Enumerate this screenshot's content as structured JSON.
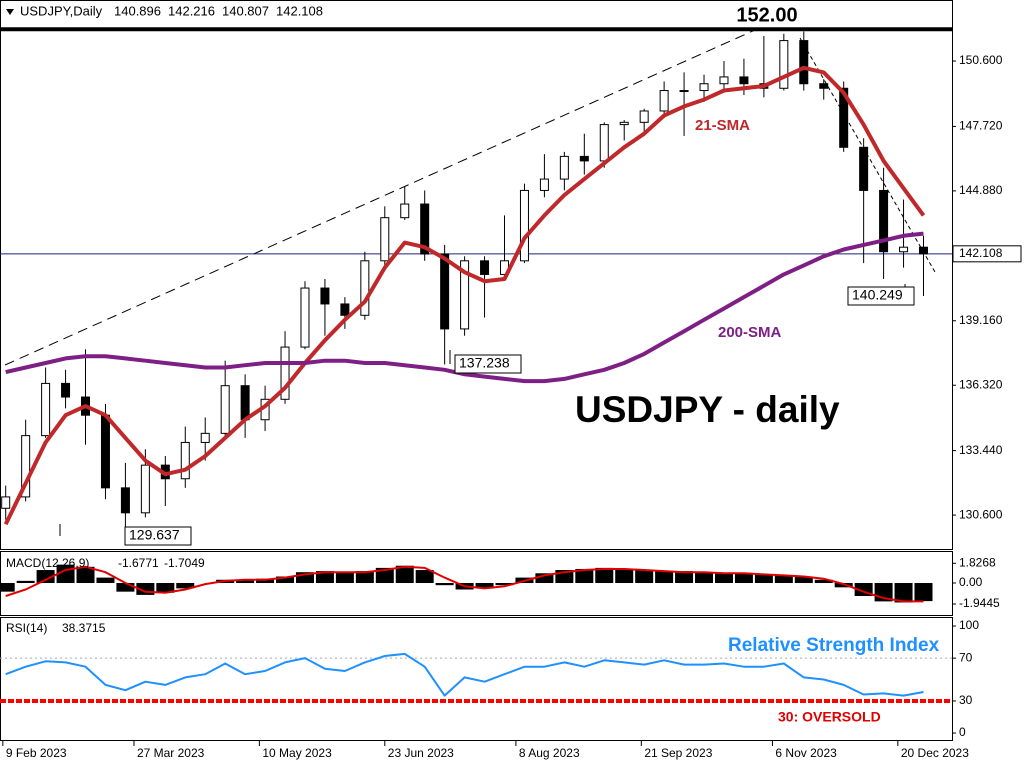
{
  "chart_data": [
    {
      "type": "candlestick",
      "header": "USDJPY,Daily",
      "ohlc_readout": [
        140.896,
        142.216,
        140.807,
        142.108
      ],
      "title": "USDJPY - daily",
      "x": [
        "2023-02-10",
        "2023-02-17",
        "2023-02-24",
        "2023-03-03",
        "2023-03-10",
        "2023-03-17",
        "2023-03-24",
        "2023-03-31",
        "2023-04-07",
        "2023-04-14",
        "2023-04-21",
        "2023-04-28",
        "2023-05-05",
        "2023-05-12",
        "2023-05-19",
        "2023-05-26",
        "2023-06-02",
        "2023-06-09",
        "2023-06-16",
        "2023-06-23",
        "2023-06-30",
        "2023-07-07",
        "2023-07-14",
        "2023-07-21",
        "2023-07-28",
        "2023-08-04",
        "2023-08-11",
        "2023-08-18",
        "2023-08-25",
        "2023-09-01",
        "2023-09-08",
        "2023-09-15",
        "2023-09-22",
        "2023-09-29",
        "2023-10-06",
        "2023-10-13",
        "2023-10-20",
        "2023-10-27",
        "2023-11-03",
        "2023-11-10",
        "2023-11-17",
        "2023-11-24",
        "2023-12-01",
        "2023-12-08",
        "2023-12-15",
        "2023-12-22",
        "2023-12-29"
      ],
      "open": [
        130.9,
        131.4,
        134.1,
        136.4,
        135.8,
        135.0,
        131.8,
        130.7,
        132.8,
        132.2,
        133.8,
        134.2,
        136.3,
        134.8,
        135.7,
        138.0,
        140.6,
        139.9,
        139.4,
        141.8,
        143.7,
        144.3,
        142.1,
        138.8,
        141.8,
        141.2,
        141.8,
        144.9,
        145.4,
        146.4,
        146.2,
        147.8,
        147.9,
        148.4,
        149.3,
        149.3,
        149.6,
        149.9,
        149.6,
        149.4,
        151.5,
        149.6,
        149.4,
        146.8,
        144.9,
        142.2,
        142.4
      ],
      "high": [
        131.9,
        134.8,
        137.1,
        137.0,
        137.9,
        135.5,
        132.9,
        133.5,
        133.2,
        134.5,
        134.9,
        137.4,
        136.8,
        136.3,
        138.7,
        140.9,
        141.0,
        140.2,
        142.2,
        144.2,
        145.07,
        144.9,
        142.5,
        142.0,
        142.0,
        143.8,
        145.2,
        146.5,
        146.6,
        147.4,
        147.9,
        148.0,
        148.5,
        149.7,
        150.1,
        150.0,
        150.6,
        150.7,
        151.7,
        151.8,
        151.9,
        149.8,
        149.7,
        147.2,
        145.9,
        144.5,
        142.9
      ],
      "low": [
        130.4,
        131.2,
        134.0,
        135.3,
        133.7,
        131.3,
        129.637,
        130.5,
        131.0,
        131.8,
        133.0,
        133.9,
        134.0,
        134.3,
        135.5,
        137.9,
        138.5,
        138.8,
        139.2,
        141.6,
        143.6,
        141.8,
        137.238,
        138.5,
        139.3,
        141.0,
        141.7,
        144.6,
        144.9,
        145.6,
        145.9,
        147.1,
        147.4,
        148.1,
        147.3,
        148.8,
        149.3,
        149.1,
        149.0,
        149.3,
        149.3,
        148.9,
        146.6,
        141.7,
        141.0,
        141.5,
        140.249
      ],
      "close": [
        131.4,
        134.1,
        136.4,
        135.8,
        135.0,
        131.8,
        130.7,
        132.8,
        132.2,
        133.8,
        134.2,
        136.3,
        134.8,
        135.7,
        138.0,
        140.6,
        139.9,
        139.4,
        141.8,
        143.7,
        144.3,
        142.1,
        138.8,
        141.8,
        141.2,
        141.8,
        144.9,
        145.4,
        146.4,
        146.2,
        147.8,
        147.9,
        148.4,
        149.3,
        149.3,
        149.6,
        149.9,
        149.6,
        149.4,
        151.5,
        149.6,
        149.4,
        146.8,
        144.9,
        142.2,
        142.4,
        142.108
      ],
      "series": [
        {
          "name": "21-SMA",
          "color": "#c0282a",
          "values": [
            130.2,
            132.0,
            133.8,
            135.0,
            135.4,
            135.0,
            134.0,
            133.0,
            132.4,
            132.6,
            133.2,
            134.0,
            134.8,
            135.4,
            136.2,
            137.3,
            138.3,
            139.2,
            140.0,
            141.5,
            142.6,
            142.4,
            141.9,
            141.3,
            140.9,
            141.0,
            142.8,
            143.8,
            144.7,
            145.4,
            146.1,
            146.8,
            147.4,
            148.2,
            148.6,
            148.9,
            149.3,
            149.4,
            149.5,
            149.9,
            150.3,
            150.1,
            149.2,
            147.8,
            146.2,
            145.0,
            143.8
          ]
        },
        {
          "name": "200-SMA",
          "color": "#7e1f86",
          "values": [
            136.9,
            137.1,
            137.3,
            137.5,
            137.6,
            137.6,
            137.5,
            137.4,
            137.3,
            137.2,
            137.1,
            137.1,
            137.2,
            137.3,
            137.3,
            137.3,
            137.4,
            137.4,
            137.3,
            137.3,
            137.2,
            137.1,
            137.0,
            136.8,
            136.7,
            136.6,
            136.5,
            136.5,
            136.6,
            136.8,
            137.0,
            137.3,
            137.7,
            138.2,
            138.7,
            139.2,
            139.7,
            140.2,
            140.7,
            141.2,
            141.6,
            142.0,
            142.3,
            142.5,
            142.7,
            142.9,
            143.0
          ]
        }
      ],
      "up_color": "#ffffff",
      "down_color": "#000000",
      "xlim": [
        "2023-02-08",
        "2024-01-08"
      ],
      "xticks": [
        {
          "value": "2023-02-09",
          "label": "9 Feb 2023"
        },
        {
          "value": "2023-03-27",
          "label": "27 Mar 2023"
        },
        {
          "value": "2023-05-10",
          "label": "10 May 2023"
        },
        {
          "value": "2023-06-23",
          "label": "23 Jun 2023"
        },
        {
          "value": "2023-08-08",
          "label": "8 Aug 2023"
        },
        {
          "value": "2023-09-21",
          "label": "21 Sep 2023"
        },
        {
          "value": "2023-11-06",
          "label": "6 Nov 2023"
        },
        {
          "value": "2023-12-20",
          "label": "20 Dec 2023"
        }
      ],
      "ylim": [
        129.15,
        153.2
      ],
      "yticks": [
        {
          "value": 150.6,
          "label": "150.600"
        },
        {
          "value": 147.72,
          "label": "147.720"
        },
        {
          "value": 144.88,
          "label": "144.880"
        },
        {
          "value": 139.16,
          "label": "139.160"
        },
        {
          "value": 136.32,
          "label": "136.320"
        },
        {
          "value": 133.44,
          "label": "133.440"
        },
        {
          "value": 130.6,
          "label": "130.600"
        }
      ],
      "current_price": 142.108,
      "resistance": {
        "value": 152,
        "label": "152.00"
      },
      "low_labels": [
        129.637,
        137.238,
        140.249
      ]
    },
    {
      "type": "macd",
      "title": "MACD(12,26,9)",
      "readout": [
        -1.6771,
        -1.7049
      ],
      "x": [
        "2023-02-10",
        "2023-02-17",
        "2023-02-24",
        "2023-03-03",
        "2023-03-10",
        "2023-03-17",
        "2023-03-24",
        "2023-03-31",
        "2023-04-07",
        "2023-04-14",
        "2023-04-21",
        "2023-04-28",
        "2023-05-05",
        "2023-05-12",
        "2023-05-19",
        "2023-05-26",
        "2023-06-02",
        "2023-06-09",
        "2023-06-16",
        "2023-06-23",
        "2023-06-30",
        "2023-07-07",
        "2023-07-14",
        "2023-07-21",
        "2023-07-28",
        "2023-08-04",
        "2023-08-11",
        "2023-08-18",
        "2023-08-25",
        "2023-09-01",
        "2023-09-08",
        "2023-09-15",
        "2023-09-22",
        "2023-09-29",
        "2023-10-06",
        "2023-10-13",
        "2023-10-20",
        "2023-10-27",
        "2023-11-03",
        "2023-11-10",
        "2023-11-17",
        "2023-11-24",
        "2023-12-01",
        "2023-12-08",
        "2023-12-15",
        "2023-12-22",
        "2023-12-29"
      ],
      "values": [
        -0.8,
        0.2,
        1.2,
        1.7,
        1.5,
        0.5,
        -0.8,
        -1.1,
        -0.9,
        -0.5,
        0.0,
        0.3,
        0.3,
        0.4,
        0.6,
        1.0,
        1.1,
        1.0,
        1.1,
        1.4,
        1.6,
        1.2,
        -0.2,
        -0.6,
        -0.5,
        -0.2,
        0.5,
        0.9,
        1.2,
        1.3,
        1.4,
        1.3,
        1.2,
        1.1,
        1.1,
        1.0,
        0.9,
        0.9,
        0.8,
        0.7,
        0.6,
        0.3,
        -0.4,
        -1.2,
        -1.7,
        -1.8,
        -1.6771
      ],
      "color": "#000000",
      "signal": {
        "color": "#e00000",
        "values": [
          -1.2,
          -0.6,
          0.3,
          1.2,
          1.5,
          1.0,
          0.0,
          -0.8,
          -0.9,
          -0.6,
          -0.1,
          0.2,
          0.3,
          0.3,
          0.5,
          0.8,
          1.0,
          1.0,
          1.0,
          1.2,
          1.5,
          1.4,
          0.5,
          -0.3,
          -0.5,
          -0.3,
          0.2,
          0.7,
          1.0,
          1.2,
          1.3,
          1.3,
          1.2,
          1.1,
          1.0,
          1.0,
          0.9,
          0.9,
          0.8,
          0.7,
          0.6,
          0.4,
          -0.1,
          -0.8,
          -1.4,
          -1.7,
          -1.7049
        ]
      },
      "xlim": [
        "2023-02-08",
        "2024-01-08"
      ],
      "ylim": [
        -2.96,
        2.87
      ],
      "yticks": [
        1.8268,
        {
          "value": 0,
          "label": "0.00"
        },
        -1.9445
      ]
    },
    {
      "type": "rsi",
      "title": "RSI(14)",
      "readout": 38.3715,
      "x": [
        "2023-02-10",
        "2023-02-17",
        "2023-02-24",
        "2023-03-03",
        "2023-03-10",
        "2023-03-17",
        "2023-03-24",
        "2023-03-31",
        "2023-04-07",
        "2023-04-14",
        "2023-04-21",
        "2023-04-28",
        "2023-05-05",
        "2023-05-12",
        "2023-05-19",
        "2023-05-26",
        "2023-06-02",
        "2023-06-09",
        "2023-06-16",
        "2023-06-23",
        "2023-06-30",
        "2023-07-07",
        "2023-07-14",
        "2023-07-21",
        "2023-07-28",
        "2023-08-04",
        "2023-08-11",
        "2023-08-18",
        "2023-08-25",
        "2023-09-01",
        "2023-09-08",
        "2023-09-15",
        "2023-09-22",
        "2023-09-29",
        "2023-10-06",
        "2023-10-13",
        "2023-10-20",
        "2023-10-27",
        "2023-11-03",
        "2023-11-10",
        "2023-11-17",
        "2023-11-24",
        "2023-12-01",
        "2023-12-08",
        "2023-12-15",
        "2023-12-22",
        "2023-12-29"
      ],
      "values": [
        55,
        62,
        67,
        66,
        62,
        45,
        40,
        48,
        45,
        52,
        55,
        65,
        55,
        58,
        66,
        70,
        60,
        58,
        66,
        72,
        74,
        62,
        35,
        52,
        48,
        55,
        62,
        62,
        66,
        62,
        68,
        66,
        64,
        68,
        64,
        64,
        65,
        62,
        62,
        65,
        52,
        50,
        45,
        36,
        37,
        35,
        38.3715
      ],
      "color": "#1e90ff",
      "annotations": [
        "Relative Strength Index",
        "30: OVERSOLD"
      ],
      "level_lines": [
        {
          "value": 70,
          "color": "#aaaaaa"
        },
        {
          "value": 30,
          "color": "#ff0000"
        }
      ],
      "xlim": [
        "2023-02-08",
        "2024-01-08"
      ],
      "ylim": [
        -6.5,
        107.5
      ],
      "yticks": [
        100,
        70,
        30,
        0
      ]
    }
  ]
}
